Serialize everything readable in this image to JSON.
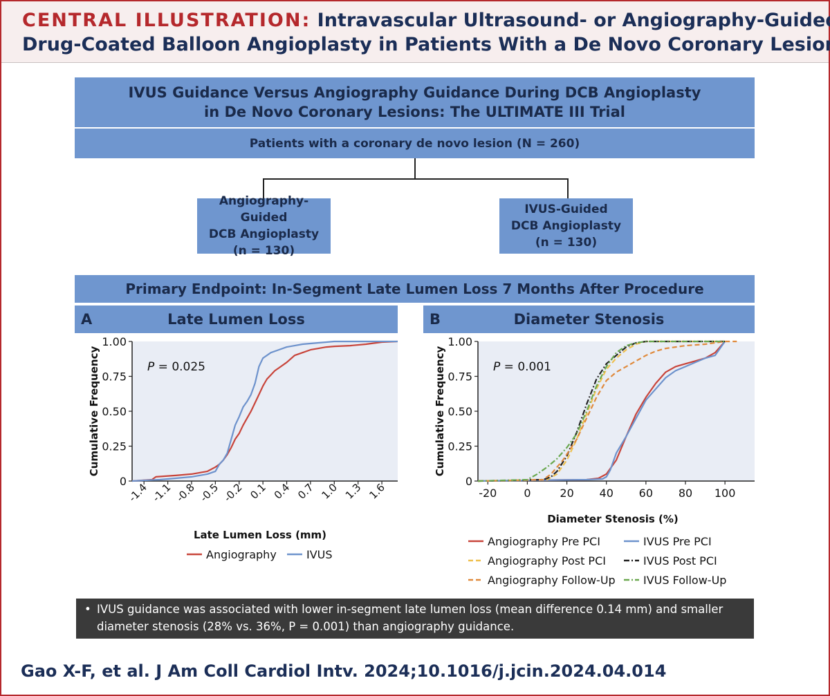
{
  "header": {
    "label": "CENTRAL ILLUSTRATION:",
    "title_line1": "Intravascular Ultrasound- or Angiography-Guided",
    "title_line2": "Drug-Coated Balloon Angioplasty in Patients With a De Novo Coronary Lesion"
  },
  "flow": {
    "trial_line1": "IVUS Guidance Versus Angiography Guidance During DCB Angioplasty",
    "trial_line2": "in De Novo Coronary Lesions: The ULTIMATE III Trial",
    "patients": "Patients with a coronary de novo lesion (N = 260)",
    "arm_left": [
      "Angiography-Guided",
      "DCB Angioplasty",
      "(n = 130)"
    ],
    "arm_right": [
      "IVUS-Guided",
      "DCB Angioplasty",
      "(n = 130)"
    ],
    "endpoint": "Primary Endpoint: In-Segment Late Lumen Loss 7 Months After Procedure"
  },
  "panel_a": {
    "letter": "A",
    "title": "Late Lumen Loss"
  },
  "panel_b": {
    "letter": "B",
    "title": "Diameter Stenosis"
  },
  "summary": {
    "bullet": "•",
    "line1": "IVUS guidance was associated with lower in-segment late lumen loss (mean difference 0.14 mm) and smaller",
    "line2": "diameter stenosis (28% vs. 36%, P = 0.001) than angiography guidance."
  },
  "citation": "Gao X-F, et al. J Am Coll Cardiol Intv. 2024;10.1016/j.jcin.2024.04.014",
  "colors": {
    "brand_red": "#b5282c",
    "navy": "#1b2e57",
    "box_blue": "#6f96cf",
    "plot_bg": "#e9edf5",
    "angio_red": "#c8443a",
    "ivus_blue": "#6d92cc",
    "post_gold": "#efc04f",
    "followup_orange": "#e08a3c",
    "ivus_post_black": "#222222",
    "ivus_followup_green": "#6aa84f"
  },
  "chart_data": [
    {
      "type": "line",
      "title": "Late Lumen Loss",
      "xlabel": "Late Lumen Loss (mm)",
      "ylabel": "Cumulative Frequency",
      "xlim": [
        -1.55,
        1.8
      ],
      "ylim": [
        0,
        1
      ],
      "xticks": [
        -1.4,
        -1.1,
        -0.8,
        -0.5,
        -0.2,
        0.1,
        0.4,
        0.7,
        1.0,
        1.3,
        1.6
      ],
      "xtick_labels": [
        "-1.4",
        "-1.1",
        "-0.8",
        "-0.5",
        "-0.2",
        "0.1",
        "0.4",
        "0.7",
        "1.0",
        "1.3",
        "1.6"
      ],
      "yticks": [
        0,
        0.25,
        0.5,
        0.75,
        1.0
      ],
      "ytick_labels": [
        "0",
        "0.25",
        "0.50",
        "0.75",
        "1.00"
      ],
      "annotation": {
        "label": "P",
        "text": " = 0.025"
      },
      "legend": "bottom",
      "series": [
        {
          "name": "Angiography",
          "color": "#c8443a",
          "dash": "",
          "x": [
            -1.55,
            -1.3,
            -1.25,
            -1.0,
            -0.8,
            -0.6,
            -0.5,
            -0.45,
            -0.4,
            -0.35,
            -0.3,
            -0.25,
            -0.2,
            -0.15,
            -0.1,
            -0.05,
            0.0,
            0.05,
            0.1,
            0.15,
            0.2,
            0.25,
            0.3,
            0.4,
            0.5,
            0.6,
            0.7,
            0.8,
            0.9,
            1.0,
            1.2,
            1.4,
            1.6,
            1.8
          ],
          "y": [
            0,
            0.01,
            0.03,
            0.04,
            0.05,
            0.07,
            0.1,
            0.12,
            0.15,
            0.19,
            0.24,
            0.3,
            0.34,
            0.4,
            0.45,
            0.5,
            0.56,
            0.62,
            0.68,
            0.73,
            0.76,
            0.79,
            0.81,
            0.85,
            0.9,
            0.92,
            0.94,
            0.95,
            0.96,
            0.965,
            0.97,
            0.98,
            0.995,
            1.0
          ]
        },
        {
          "name": "IVUS",
          "color": "#6d92cc",
          "dash": "",
          "x": [
            -1.55,
            -1.4,
            -1.2,
            -1.0,
            -0.8,
            -0.6,
            -0.5,
            -0.45,
            -0.4,
            -0.35,
            -0.3,
            -0.25,
            -0.2,
            -0.15,
            -0.1,
            -0.05,
            0.0,
            0.05,
            0.1,
            0.15,
            0.2,
            0.3,
            0.4,
            0.5,
            0.6,
            0.8,
            1.0,
            1.2,
            1.4,
            1.6,
            1.8
          ],
          "y": [
            0,
            0.005,
            0.01,
            0.02,
            0.03,
            0.05,
            0.07,
            0.12,
            0.15,
            0.2,
            0.3,
            0.4,
            0.46,
            0.53,
            0.57,
            0.62,
            0.7,
            0.82,
            0.88,
            0.9,
            0.92,
            0.94,
            0.96,
            0.97,
            0.98,
            0.99,
            1.0,
            1.0,
            1.0,
            1.0,
            1.0
          ]
        }
      ]
    },
    {
      "type": "line",
      "title": "Diameter Stenosis",
      "xlabel": "Diameter Stenosis (%)",
      "ylabel": "Cumulative Frequency",
      "xlim": [
        -25,
        115
      ],
      "ylim": [
        0,
        1
      ],
      "xticks": [
        -20,
        0,
        20,
        40,
        60,
        80,
        100
      ],
      "xtick_labels": [
        "-20",
        "0",
        "20",
        "40",
        "60",
        "80",
        "100"
      ],
      "yticks": [
        0,
        0.25,
        0.5,
        0.75,
        1.0
      ],
      "ytick_labels": [
        "0",
        "0.25",
        "0.50",
        "0.75",
        "1.00"
      ],
      "annotation": {
        "label": "P",
        "text": " = 0.001"
      },
      "legend": "bottom",
      "series": [
        {
          "name": "Angiography Pre PCI",
          "color": "#c8443a",
          "dash": "",
          "x": [
            -25,
            0,
            30,
            36,
            40,
            45,
            50,
            55,
            60,
            65,
            70,
            75,
            80,
            85,
            90,
            95,
            100
          ],
          "y": [
            0,
            0.005,
            0.01,
            0.02,
            0.05,
            0.15,
            0.32,
            0.48,
            0.6,
            0.7,
            0.78,
            0.82,
            0.84,
            0.86,
            0.88,
            0.92,
            1.0
          ]
        },
        {
          "name": "IVUS Pre PCI",
          "color": "#6d92cc",
          "dash": "",
          "x": [
            -25,
            0,
            30,
            38,
            40,
            42,
            45,
            50,
            55,
            60,
            65,
            70,
            75,
            80,
            85,
            90,
            95,
            100
          ],
          "y": [
            0,
            0.005,
            0.01,
            0.015,
            0.03,
            0.08,
            0.2,
            0.32,
            0.45,
            0.58,
            0.66,
            0.74,
            0.79,
            0.82,
            0.85,
            0.88,
            0.9,
            1.0
          ]
        },
        {
          "name": "Angiography Post PCI",
          "color": "#efc04f",
          "dash": "7,4",
          "x": [
            -25,
            10,
            15,
            20,
            25,
            30,
            35,
            40,
            45,
            50,
            55,
            60,
            70,
            100
          ],
          "y": [
            0,
            0.01,
            0.05,
            0.15,
            0.3,
            0.48,
            0.66,
            0.8,
            0.88,
            0.94,
            0.98,
            1.0,
            1.0,
            1.0
          ]
        },
        {
          "name": "IVUS Post PCI",
          "color": "#222222",
          "dash": "8,3,2,3",
          "x": [
            -25,
            8,
            12,
            15,
            20,
            25,
            30,
            35,
            40,
            45,
            50,
            55,
            60,
            100
          ],
          "y": [
            0,
            0.01,
            0.03,
            0.07,
            0.18,
            0.35,
            0.55,
            0.73,
            0.84,
            0.9,
            0.96,
            0.99,
            1.0,
            1.0
          ]
        },
        {
          "name": "Angiography Follow-Up",
          "color": "#e08a3c",
          "dash": "7,4",
          "x": [
            -25,
            8,
            12,
            18,
            25,
            30,
            35,
            40,
            45,
            50,
            55,
            60,
            65,
            70,
            75,
            80,
            90,
            100,
            106
          ],
          "y": [
            0,
            0.01,
            0.05,
            0.15,
            0.3,
            0.45,
            0.6,
            0.72,
            0.78,
            0.82,
            0.86,
            0.9,
            0.93,
            0.95,
            0.96,
            0.97,
            0.98,
            1.0,
            1.0
          ]
        },
        {
          "name": "IVUS Follow-Up",
          "color": "#6aa84f",
          "dash": "8,3,2,3",
          "x": [
            -25,
            0,
            5,
            10,
            15,
            20,
            25,
            30,
            35,
            40,
            45,
            50,
            55,
            60,
            100
          ],
          "y": [
            0,
            0.01,
            0.05,
            0.1,
            0.16,
            0.24,
            0.34,
            0.5,
            0.68,
            0.82,
            0.92,
            0.97,
            0.99,
            1.0,
            1.0
          ]
        }
      ]
    }
  ]
}
